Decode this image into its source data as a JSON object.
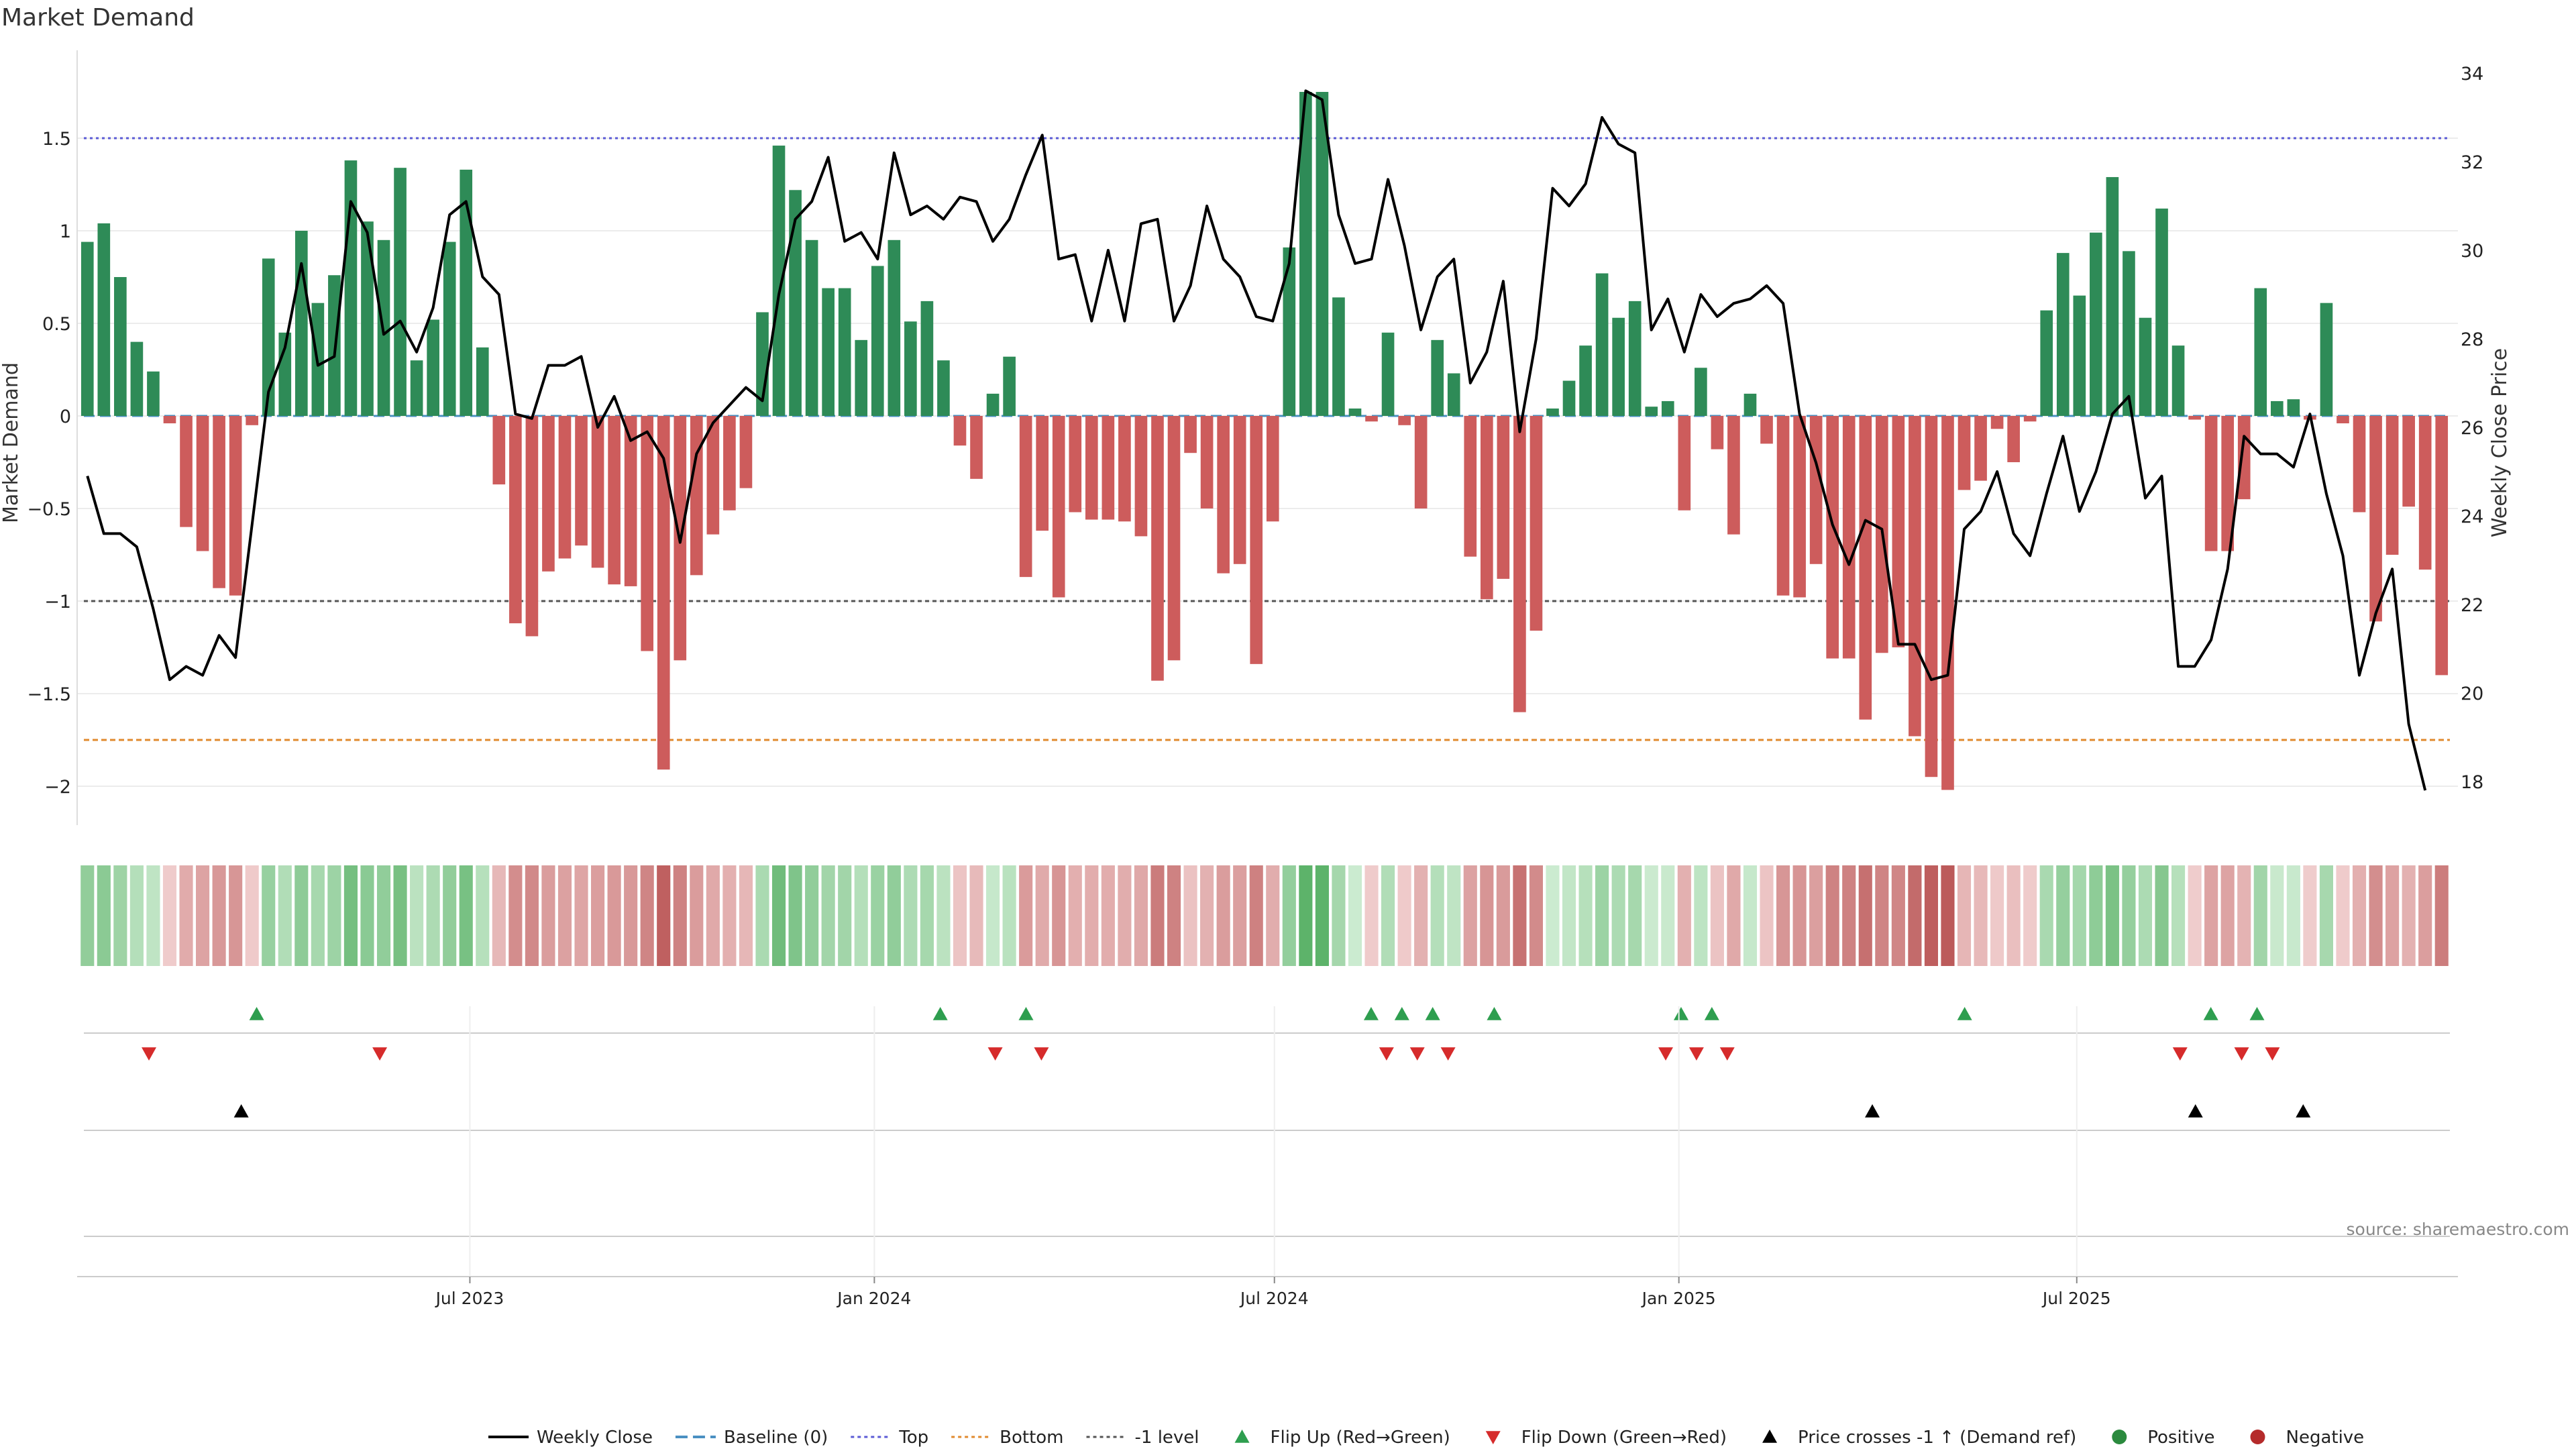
{
  "chart_data": {
    "type": "bar",
    "title": "Market Demand",
    "ylabel": "Market Demand",
    "y2label": "Weekly Close Price",
    "ylim": [
      -2.2,
      2.0
    ],
    "y2lim": [
      17.3,
      34.8
    ],
    "yticks": [
      -2,
      -1.5,
      -1,
      -0.5,
      0,
      0.5,
      1,
      1.5
    ],
    "yticklabels": [
      "−2",
      "−1.5",
      "−1",
      "−0.5",
      "0",
      "0.5",
      "1",
      "1.5"
    ],
    "y2ticks": [
      18,
      20,
      22,
      24,
      26,
      28,
      30,
      32,
      34
    ],
    "y2ticklabels": [
      "18",
      "20",
      "22",
      "24",
      "26",
      "28",
      "30",
      "32",
      "34"
    ],
    "x_start": "2023-01-08",
    "x_end": "2025-12-14",
    "xticks": [
      {
        "date": "2023-07-01",
        "label": "Jul 2023"
      },
      {
        "date": "2024-01-01",
        "label": "Jan 2024"
      },
      {
        "date": "2024-07-01",
        "label": "Jul 2024"
      },
      {
        "date": "2025-01-01",
        "label": "Jan 2025"
      },
      {
        "date": "2025-07-01",
        "label": "Jul 2025"
      }
    ],
    "levels": {
      "top": 1.5,
      "bottom": -1.75,
      "minus_one": -1.0,
      "baseline": 0
    },
    "demand": [
      0.94,
      1.04,
      0.75,
      0.4,
      0.24,
      -0.04,
      -0.6,
      -0.73,
      -0.93,
      -0.97,
      -0.05,
      0.85,
      0.45,
      1.0,
      0.61,
      0.76,
      1.38,
      1.05,
      0.95,
      1.34,
      0.3,
      0.52,
      0.94,
      1.33,
      0.37,
      -0.37,
      -1.12,
      -1.19,
      -0.84,
      -0.77,
      -0.7,
      -0.82,
      -0.91,
      -0.92,
      -1.27,
      -1.91,
      -1.32,
      -0.86,
      -0.64,
      -0.51,
      -0.39,
      0.56,
      1.46,
      1.22,
      0.95,
      0.69,
      0.69,
      0.41,
      0.81,
      0.95,
      0.51,
      0.62,
      0.3,
      -0.16,
      -0.34,
      0.12,
      0.32,
      -0.87,
      -0.62,
      -0.98,
      -0.52,
      -0.56,
      -0.56,
      -0.57,
      -0.65,
      -1.43,
      -1.32,
      -0.2,
      -0.5,
      -0.85,
      -0.8,
      -1.34,
      -0.57,
      0.91,
      1.75,
      1.75,
      0.64,
      0.04,
      -0.03,
      0.45,
      -0.05,
      -0.5,
      0.41,
      0.23,
      -0.76,
      -0.99,
      -0.88,
      -1.6,
      -1.16,
      0.04,
      0.19,
      0.38,
      0.77,
      0.53,
      0.62,
      0.05,
      0.08,
      -0.51,
      0.26,
      -0.18,
      -0.64,
      0.12,
      -0.15,
      -0.97,
      -0.98,
      -0.8,
      -1.31,
      -1.31,
      -1.64,
      -1.28,
      -1.25,
      -1.73,
      -1.95,
      -2.02,
      -0.4,
      -0.35,
      -0.07,
      -0.25,
      -0.03,
      0.57,
      0.88,
      0.65,
      0.99,
      1.29,
      0.89,
      0.53,
      1.12,
      0.38,
      -0.02,
      -0.73,
      -0.73,
      -0.45,
      0.69,
      0.08,
      0.09,
      -0.02,
      0.61,
      -0.04,
      -0.52,
      -1.11,
      -0.75,
      -0.49,
      -0.83,
      -1.4
    ],
    "series": [
      {
        "name": "Weekly Close",
        "values": [
          24.9,
          23.6,
          23.6,
          23.3,
          21.9,
          20.3,
          20.6,
          20.4,
          21.3,
          20.8,
          23.8,
          26.8,
          27.8,
          29.7,
          27.4,
          27.6,
          31.1,
          30.4,
          28.1,
          28.4,
          27.7,
          28.7,
          30.8,
          31.1,
          29.4,
          29.0,
          26.3,
          26.2,
          27.4,
          27.4,
          27.6,
          26.0,
          26.7,
          25.7,
          25.9,
          25.3,
          23.4,
          25.4,
          26.1,
          26.5,
          26.9,
          26.6,
          29.0,
          30.7,
          31.1,
          32.1,
          30.2,
          30.4,
          29.8,
          32.2,
          30.8,
          31.0,
          30.7,
          31.2,
          31.1,
          30.2,
          30.7,
          31.7,
          32.6,
          29.8,
          29.9,
          28.4,
          30.0,
          28.4,
          30.6,
          30.7,
          28.4,
          29.2,
          31.0,
          29.8,
          29.4,
          28.5,
          28.4,
          29.7,
          33.6,
          33.4,
          30.8,
          29.7,
          29.8,
          31.6,
          30.1,
          28.2,
          29.4,
          29.8,
          27.0,
          27.7,
          29.3,
          25.9,
          28.0,
          31.4,
          31.0,
          31.5,
          33.0,
          32.4,
          32.2,
          28.2,
          28.9,
          27.7,
          29.0,
          28.5,
          28.8,
          28.9,
          29.2,
          28.8,
          26.3,
          25.2,
          23.8,
          22.9,
          23.9,
          23.7,
          21.1,
          21.1,
          20.3,
          20.4,
          23.7,
          24.1,
          25.0,
          23.6,
          23.1,
          24.5,
          25.8,
          24.1,
          25.0,
          26.3,
          26.7,
          24.4,
          24.9,
          20.6,
          20.6,
          21.2,
          22.8,
          25.8,
          25.4,
          25.4,
          25.1,
          26.3,
          24.5,
          23.1,
          20.4,
          21.8,
          22.8,
          19.3,
          17.8
        ]
      },
      {
        "name": "Baseline (0)"
      },
      {
        "name": "Top"
      },
      {
        "name": "Bottom"
      },
      {
        "name": "-1 level"
      }
    ],
    "flip_up_dates": [
      "2023-03-26",
      "2024-01-31",
      "2024-03-10",
      "2024-08-14",
      "2024-08-28",
      "2024-09-11",
      "2024-10-09",
      "2025-01-02",
      "2025-01-16",
      "2025-05-11",
      "2025-08-31",
      "2025-09-21"
    ],
    "flip_down_dates": [
      "2023-02-05",
      "2023-05-21",
      "2024-02-25",
      "2024-03-17",
      "2024-08-21",
      "2024-09-04",
      "2024-09-18",
      "2024-12-26",
      "2025-01-09",
      "2025-01-23",
      "2025-08-17",
      "2025-09-14",
      "2025-09-28"
    ],
    "price_cross_dates": [
      "2023-03-19",
      "2025-03-30",
      "2025-08-24",
      "2025-10-12"
    ],
    "legend_position": "bottom-center",
    "legend": [
      {
        "label": "Weekly Close",
        "marker": "line",
        "color": "#000000"
      },
      {
        "label": "Baseline (0)",
        "marker": "dash",
        "color": "#4a90c2"
      },
      {
        "label": "Top",
        "marker": "dot-line",
        "color": "#5b5bd6"
      },
      {
        "label": "Bottom",
        "marker": "dot-line",
        "color": "#e08a2e"
      },
      {
        "label": "-1 level",
        "marker": "dot-line",
        "color": "#555555"
      },
      {
        "label": "Flip Up (Red→Green)",
        "marker": "triangle-up",
        "color": "#2e9e4f"
      },
      {
        "label": "Flip Down (Green→Red)",
        "marker": "triangle-down",
        "color": "#d62b2b"
      },
      {
        "label": "Price crosses -1 ↑ (Demand ref)",
        "marker": "triangle-up",
        "color": "#000000"
      },
      {
        "label": "Positive",
        "marker": "circle",
        "color": "#2b8a3e"
      },
      {
        "label": "Negative",
        "marker": "circle",
        "color": "#b52b2b"
      }
    ],
    "colors": {
      "positive_bar": "#2e8b57",
      "negative_bar": "#cd5c5c",
      "price_line": "#000000",
      "top_line": "#5b5bd6",
      "bottom_line": "#e08a2e",
      "minus_one_line": "#555555",
      "baseline": "#4a90c2"
    }
  },
  "source": "source: sharemaestro.com"
}
